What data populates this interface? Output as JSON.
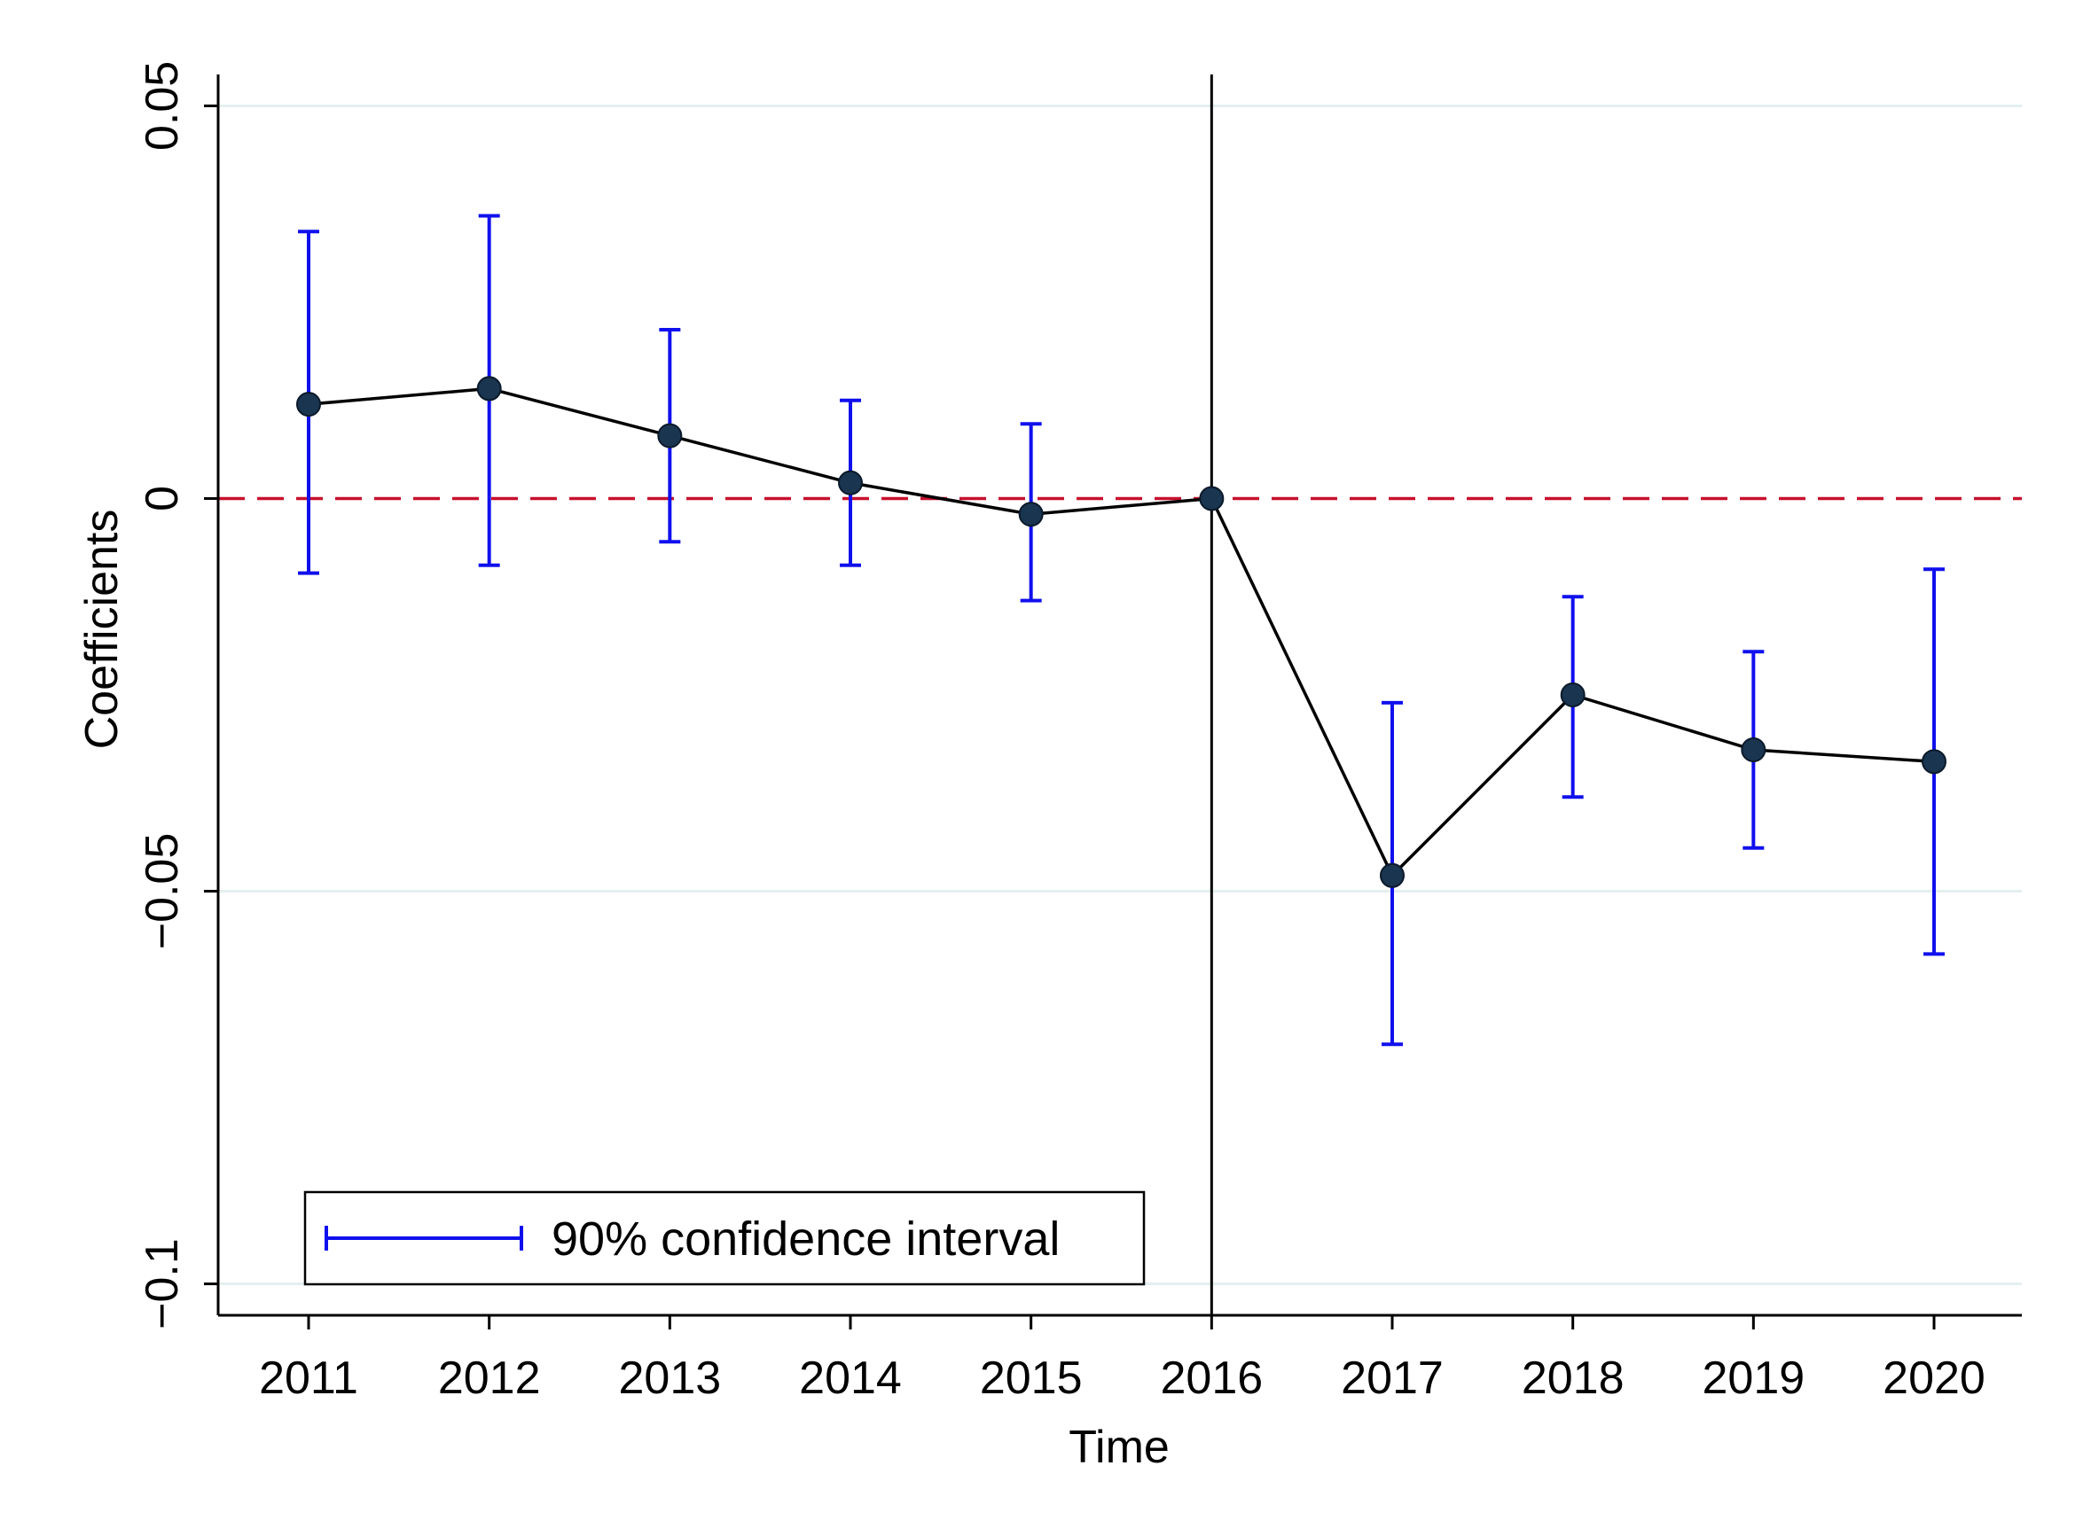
{
  "chart_data": {
    "type": "line",
    "title": "",
    "xlabel": "Time",
    "ylabel": "Coefficients",
    "categories": [
      "2011",
      "2012",
      "2013",
      "2014",
      "2015",
      "2016",
      "2017",
      "2018",
      "2019",
      "2020"
    ],
    "series": [
      {
        "name": "Coefficients",
        "values": [
          0.012,
          0.014,
          0.008,
          0.002,
          -0.002,
          0.0,
          -0.048,
          -0.025,
          -0.032,
          -0.0335
        ],
        "ci_lower": [
          -0.0095,
          -0.0085,
          -0.0055,
          -0.0085,
          -0.013,
          null,
          -0.0695,
          -0.038,
          -0.0445,
          -0.058
        ],
        "ci_upper": [
          0.034,
          0.036,
          0.0215,
          0.0125,
          0.0095,
          null,
          -0.026,
          -0.0125,
          -0.0195,
          -0.009
        ]
      }
    ],
    "yticks": [
      {
        "value": 0.05,
        "label": "0.05"
      },
      {
        "value": 0.0,
        "label": "0"
      },
      {
        "value": -0.05,
        "label": "−0.05"
      },
      {
        "value": -0.1,
        "label": "−0.1"
      }
    ],
    "ylim": [
      -0.104,
      0.054
    ],
    "reference_lines": {
      "horizontal": 0,
      "vertical": "2016"
    },
    "legend": {
      "label": "90% confidence interval",
      "position": "bottom-left"
    },
    "colors": {
      "line": "#000000",
      "marker": "#1a3550",
      "ci": "#1010ee",
      "zero_line": "#c8102e",
      "grid": "#e4efef"
    }
  }
}
